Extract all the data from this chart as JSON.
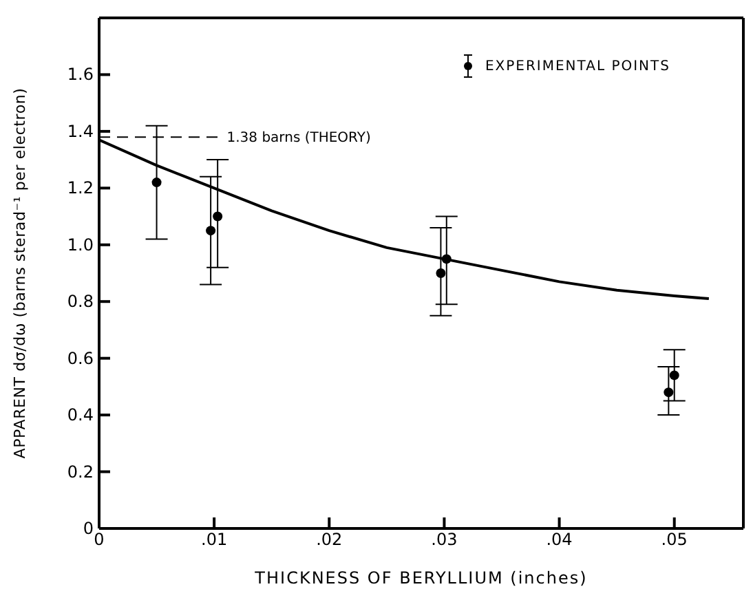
{
  "chart_data": {
    "type": "scatter",
    "xlabel": "THICKNESS OF BERYLLIUM (inches)",
    "ylabel": "APPARENT dσ/dω (barns sterad⁻¹ per electron)",
    "xlim": [
      0,
      0.056
    ],
    "xticks": [
      0,
      {
        "value": 0.01,
        "label": ".01"
      },
      {
        "value": 0.02,
        "label": ".02"
      },
      {
        "value": 0.03,
        "label": ".03"
      },
      {
        "value": 0.04,
        "label": ".04"
      },
      {
        "value": 0.05,
        "label": ".05"
      }
    ],
    "ylim": [
      0,
      1.8
    ],
    "yticks": [
      0,
      {
        "value": 0.2,
        "label": "0.2"
      },
      {
        "value": 0.4,
        "label": "0.4"
      },
      {
        "value": 0.6,
        "label": "0.6"
      },
      {
        "value": 0.8,
        "label": "0.8"
      },
      {
        "value": 1.0,
        "label": "1.0"
      },
      {
        "value": 1.2,
        "label": "1.2"
      },
      {
        "value": 1.4,
        "label": "1.4"
      },
      {
        "value": 1.6,
        "label": "1.6"
      }
    ],
    "grid": false,
    "legend": "top right",
    "series": [
      {
        "name": "EXPERIMENTAL POINTS",
        "color": "#000000",
        "marker": "circle",
        "x": [
          0.005,
          0.0097,
          0.0103,
          0.0297,
          0.0302,
          0.0495,
          0.05
        ],
        "values": [
          1.22,
          1.05,
          1.1,
          0.9,
          0.95,
          0.48,
          0.54
        ],
        "errors": [
          [
            1.02,
            1.42
          ],
          [
            0.86,
            1.24
          ],
          [
            0.92,
            1.3
          ],
          [
            0.75,
            1.06
          ],
          [
            0.79,
            1.1
          ],
          [
            0.4,
            0.57
          ],
          [
            0.45,
            0.63
          ]
        ]
      },
      {
        "type": "line",
        "color": "#000000",
        "marker": "none",
        "line_style": "solid",
        "x": [
          0,
          0.005,
          0.01,
          0.015,
          0.02,
          0.025,
          0.03,
          0.035,
          0.04,
          0.045,
          0.05,
          0.053
        ],
        "values": [
          1.37,
          1.28,
          1.2,
          1.12,
          1.05,
          0.99,
          0.95,
          0.91,
          0.87,
          0.84,
          0.82,
          0.81
        ]
      }
    ],
    "ref_lines": [
      {
        "axis": "y",
        "value": 1.38,
        "label": "1.38 barns (THEORY)",
        "color": "#000000",
        "line_style": "dashed"
      }
    ]
  }
}
